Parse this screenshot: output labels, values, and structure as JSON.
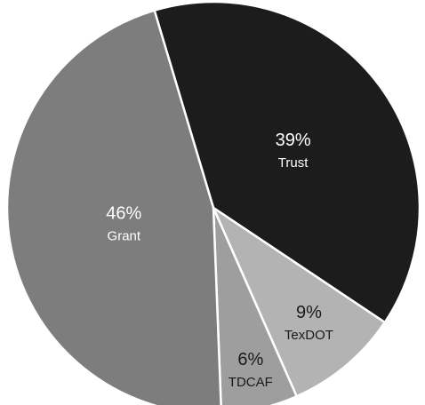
{
  "chart_data": {
    "type": "pie",
    "title": "",
    "slices": [
      {
        "label": "Trust",
        "value": 39,
        "value_label": "39%",
        "color": "#1c1c1c",
        "text_color": "#ffffff"
      },
      {
        "label": "TexDOT",
        "value": 9,
        "value_label": "9%",
        "color": "#b3b3b3",
        "text_color": "#1a1a1a"
      },
      {
        "label": "TDCAF",
        "value": 6,
        "value_label": "6%",
        "color": "#9e9e9e",
        "text_color": "#1a1a1a"
      },
      {
        "label": "Grant",
        "value": 46,
        "value_label": "46%",
        "color": "#7d7d7d",
        "text_color": "#ffffff"
      }
    ],
    "start": "top",
    "direction": "clockwise",
    "legend": "none"
  }
}
